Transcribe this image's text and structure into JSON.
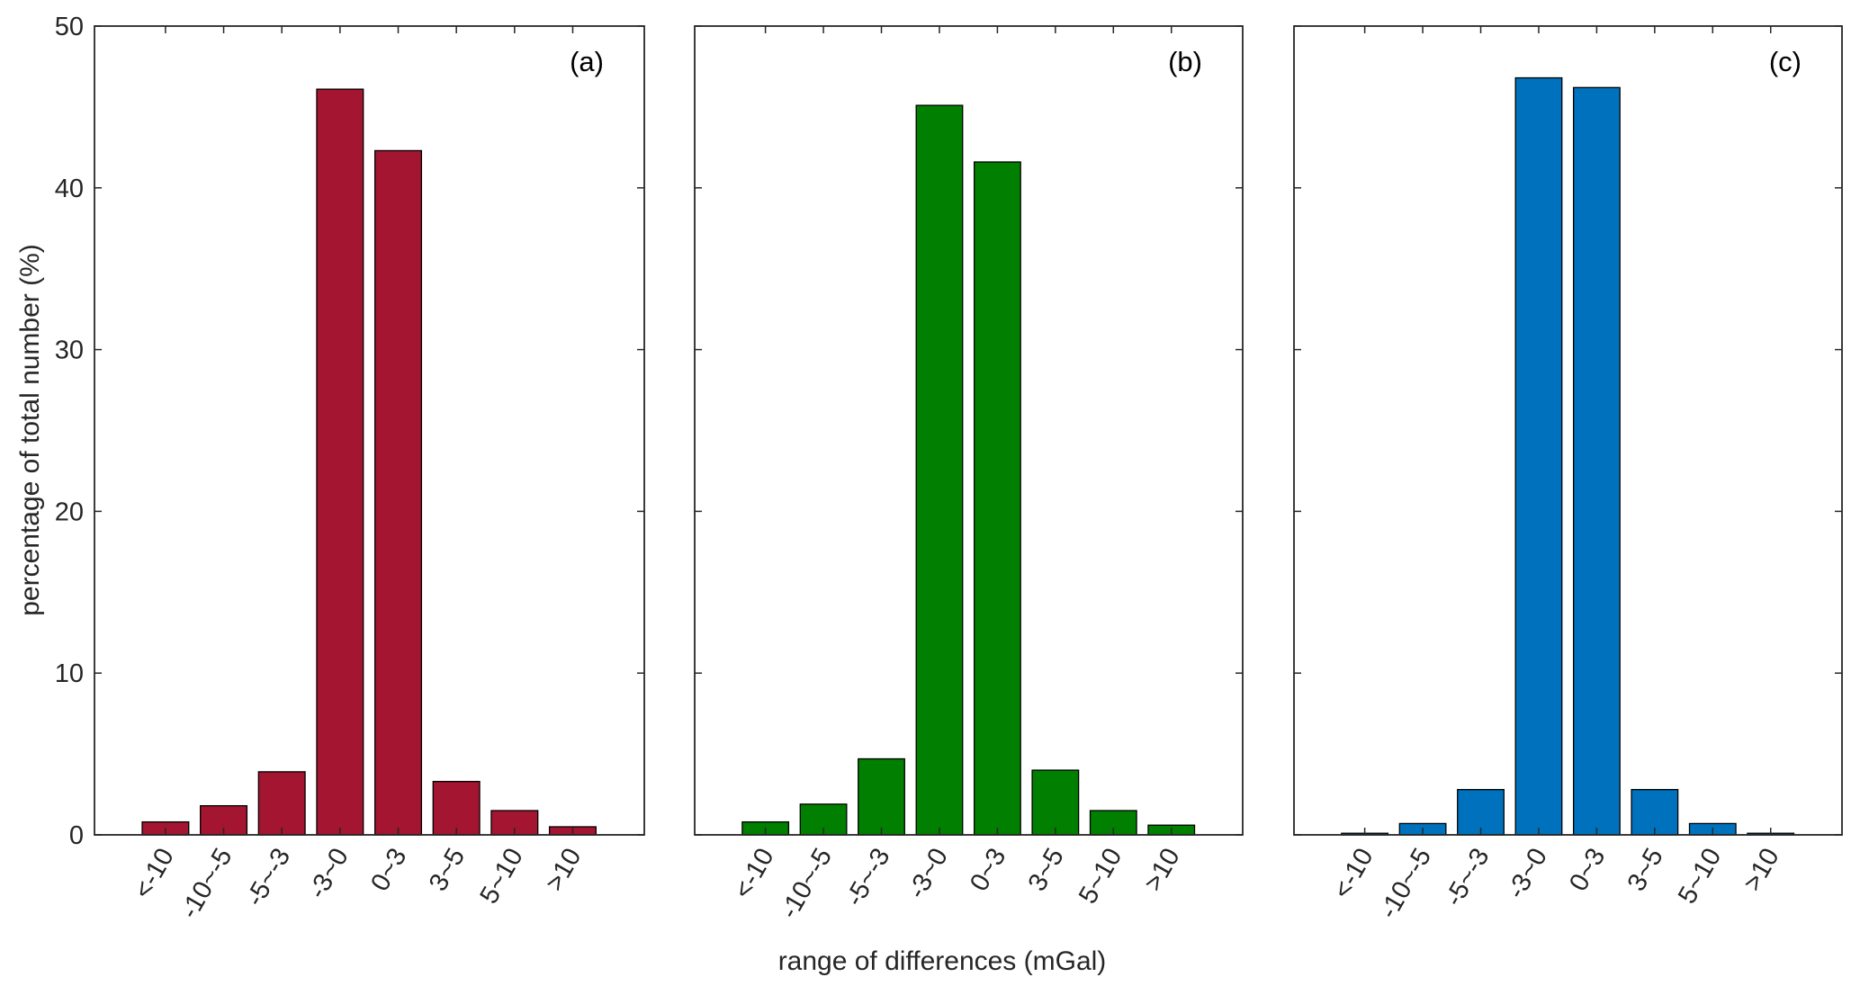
{
  "chart_data": [
    {
      "type": "bar",
      "panel_label": "(a)",
      "categories": [
        "<-10",
        "-10~-5",
        "-5~-3",
        "-3~0",
        "0~3",
        "3~5",
        "5~10",
        ">10"
      ],
      "values": [
        0.8,
        1.8,
        3.9,
        46.1,
        42.3,
        3.3,
        1.5,
        0.5
      ],
      "color": "#A31530",
      "ylim": [
        0,
        50
      ],
      "yticks": [
        0,
        10,
        20,
        30,
        40,
        50
      ]
    },
    {
      "type": "bar",
      "panel_label": "(b)",
      "categories": [
        "<-10",
        "-10~-5",
        "-5~-3",
        "-3~0",
        "0~3",
        "3~5",
        "5~10",
        ">10"
      ],
      "values": [
        0.8,
        1.9,
        4.7,
        45.1,
        41.6,
        4.0,
        1.5,
        0.6
      ],
      "color": "#007F00",
      "ylim": [
        0,
        50
      ]
    },
    {
      "type": "bar",
      "panel_label": "(c)",
      "categories": [
        "<-10",
        "-10~-5",
        "-5~-3",
        "-3~0",
        "0~3",
        "3~5",
        "5~10",
        ">10"
      ],
      "values": [
        0.1,
        0.7,
        2.8,
        46.8,
        46.2,
        2.8,
        0.7,
        0.1
      ],
      "color": "#0072BD",
      "ylim": [
        0,
        50
      ]
    }
  ],
  "xlabel": "range of differences (mGal)",
  "ylabel": "percentage of total number (%)"
}
